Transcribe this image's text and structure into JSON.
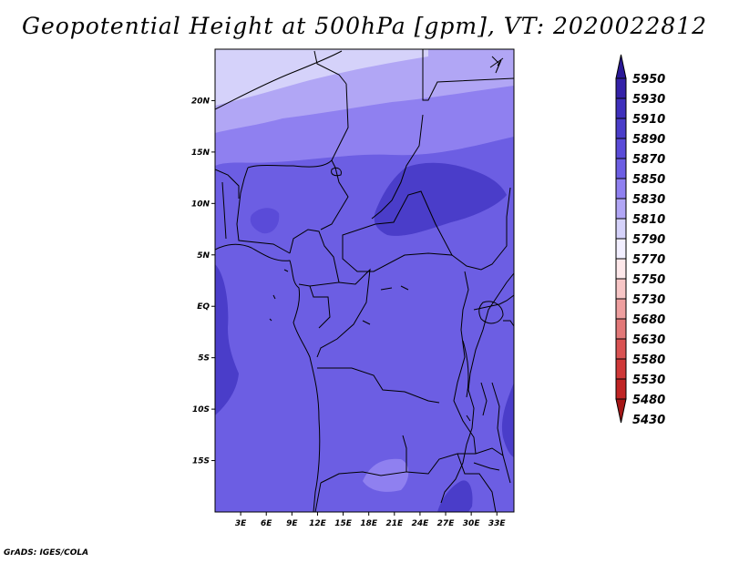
{
  "title": "Geopotential Height at 500hPa [gpm], VT: 2020022812",
  "credit": "GrADS: IGES/COLA",
  "map": {
    "lon_range": [
      0,
      35
    ],
    "lat_range": [
      -20,
      25
    ],
    "lat_ticks": [
      {
        "value": 20,
        "label": "20N"
      },
      {
        "value": 15,
        "label": "15N"
      },
      {
        "value": 10,
        "label": "10N"
      },
      {
        "value": 5,
        "label": "5N"
      },
      {
        "value": 0,
        "label": "EQ"
      },
      {
        "value": -5,
        "label": "5S"
      },
      {
        "value": -10,
        "label": "10S"
      },
      {
        "value": -15,
        "label": "15S"
      }
    ],
    "lon_ticks": [
      {
        "value": 3,
        "label": "3E"
      },
      {
        "value": 6,
        "label": "6E"
      },
      {
        "value": 9,
        "label": "9E"
      },
      {
        "value": 12,
        "label": "12E"
      },
      {
        "value": 15,
        "label": "15E"
      },
      {
        "value": 18,
        "label": "18E"
      },
      {
        "value": 21,
        "label": "21E"
      },
      {
        "value": 24,
        "label": "24E"
      },
      {
        "value": 27,
        "label": "27E"
      },
      {
        "value": 30,
        "label": "30E"
      },
      {
        "value": 33,
        "label": "33E"
      }
    ]
  },
  "colorbar": {
    "levels": [
      "5950",
      "5930",
      "5910",
      "5890",
      "5870",
      "5850",
      "5830",
      "5810",
      "5790",
      "5770",
      "5750",
      "5730",
      "5680",
      "5630",
      "5580",
      "5530",
      "5480",
      "5430"
    ],
    "colors": [
      "#2a1896",
      "#3422a8",
      "#3f30bc",
      "#4a3dc9",
      "#5a4bd8",
      "#6c5ee3",
      "#8f80f0",
      "#b1a6f5",
      "#d5d2fa",
      "#f2efff",
      "#fde8ea",
      "#f7c6c6",
      "#ee9f9f",
      "#e27878",
      "#d95252",
      "#cf3838",
      "#bf2424",
      "#a51616"
    ]
  }
}
